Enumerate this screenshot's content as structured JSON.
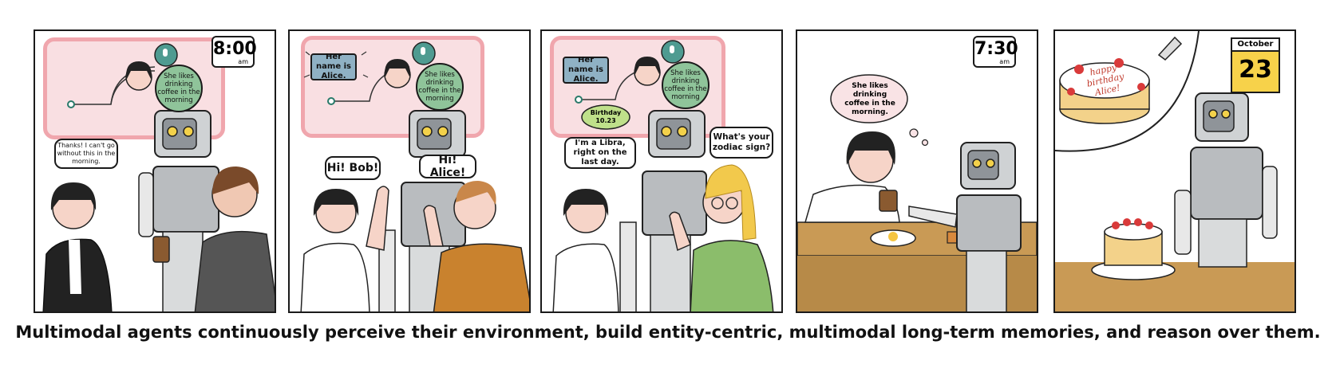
{
  "panels": [
    {
      "clock": {
        "time": "8:00",
        "ampm": "am"
      },
      "memory": {
        "bubble": "She likes drinking coffee in the morning"
      },
      "speech": [
        {
          "text": "Thanks! I can't go without this in the morning."
        }
      ]
    },
    {
      "memory": {
        "tag": "Her name is Alice.",
        "bubble": "She likes drinking coffee in the morning"
      },
      "speech": [
        {
          "text": "Hi!  Bob!"
        },
        {
          "text": "Hi!  Alice!"
        }
      ]
    },
    {
      "memory": {
        "tag": "Her name is Alice.",
        "bubble": "She likes drinking coffee in the morning",
        "birthday": "Birthday 10.23"
      },
      "speech": [
        {
          "text": "I'm a Libra, right on the last day."
        },
        {
          "text": "What's your zodiac sign?"
        }
      ]
    },
    {
      "clock": {
        "time": "7:30",
        "ampm": "am"
      },
      "thought": "She likes drinking coffee in the morning."
    },
    {
      "calendar": {
        "month": "October",
        "day": "23"
      },
      "cake_text": "happy birthday Alice!"
    }
  ],
  "caption": "Multimodal agents continuously perceive their environment, build entity-centric, multimodal long-term memories, and reason over them.",
  "colors": {
    "memory_fill": "#f9dfe2",
    "memory_border": "#f0a6ad",
    "green": "#8fc49a",
    "blue": "#8fb1c4",
    "robot": "#b9bcbf",
    "calendar": "#f7d24a"
  }
}
